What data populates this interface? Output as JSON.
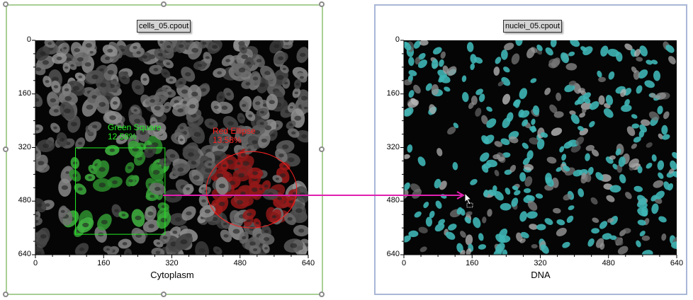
{
  "plots": [
    {
      "title": "cells_05.cpout",
      "x_axis_label": "Cytoplasm",
      "x_ticks": [
        "0",
        "160",
        "320",
        "480",
        "640"
      ],
      "y_ticks": [
        "0",
        "160",
        "320",
        "480",
        "640"
      ],
      "x_range": [
        0,
        640
      ],
      "y_range": [
        0,
        640
      ],
      "selected": true,
      "border_color": "#a9cf95",
      "gates": [
        {
          "name": "Green Square",
          "percent": "12.58%",
          "shape": "rectangle",
          "color": "#22ee22",
          "x": [
            94,
            304
          ],
          "y": [
            321,
            579
          ]
        },
        {
          "name": "Red Ellipse",
          "percent": "13.58%",
          "shape": "ellipse",
          "color": "#ff2020",
          "center": [
            507,
            446
          ],
          "radii": [
            106,
            114
          ]
        }
      ]
    },
    {
      "title": "nuclei_05.cpout",
      "x_axis_label": "DNA",
      "x_ticks": [
        "0",
        "160",
        "320",
        "480",
        "640"
      ],
      "y_ticks": [
        "0",
        "160",
        "320",
        "480",
        "640"
      ],
      "x_range": [
        0,
        640
      ],
      "y_range": [
        0,
        640
      ],
      "selected": false,
      "border_color": "#a9b7d6",
      "overlay_color": "#3fb5b5"
    }
  ],
  "link_arrow": {
    "color": "#e020b0",
    "from": "Red Ellipse",
    "to": "nuclei_05.cpout"
  },
  "cursor": "drag-copy-cursor-icon"
}
